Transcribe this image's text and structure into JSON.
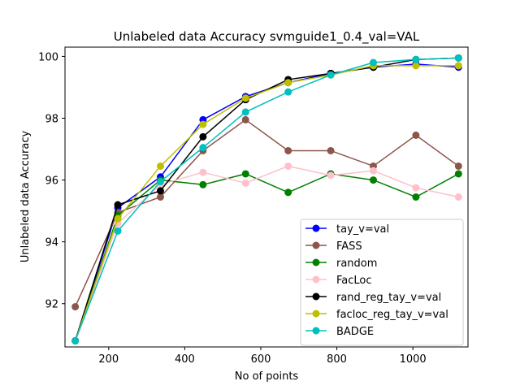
{
  "chart_data": {
    "type": "line",
    "title": "Unlabeled data Accuracy svmguide1_0.4_val=VAL",
    "xlabel": "No of points",
    "ylabel": "Unlabeled data Accuracy",
    "xlim": [
      85,
      1145
    ],
    "ylim": [
      90.6,
      100.3
    ],
    "xticks": [
      200,
      400,
      600,
      800,
      1000
    ],
    "yticks": [
      92,
      94,
      96,
      98,
      100
    ],
    "grid": false,
    "legend_position": "lower right",
    "x": [
      112,
      224,
      336,
      448,
      560,
      672,
      784,
      896,
      1008,
      1120
    ],
    "series": [
      {
        "name": "tay_v=val",
        "color": "#0000ff",
        "values": [
          90.8,
          95.1,
          96.1,
          97.95,
          98.7,
          99.15,
          99.45,
          99.65,
          99.75,
          99.65
        ]
      },
      {
        "name": "FASS",
        "color": "#8c564b",
        "values": [
          91.9,
          94.95,
          95.45,
          96.95,
          97.95,
          96.95,
          96.95,
          96.45,
          97.45,
          96.45
        ]
      },
      {
        "name": "random",
        "color": "#008000",
        "values": [
          90.8,
          94.85,
          96.0,
          95.85,
          96.2,
          95.6,
          96.2,
          96.0,
          95.45,
          96.2
        ]
      },
      {
        "name": "FacLoc",
        "color": "#ffc0cb",
        "values": [
          90.8,
          94.6,
          95.85,
          96.25,
          95.9,
          96.45,
          96.15,
          96.3,
          95.75,
          95.45
        ]
      },
      {
        "name": "rand_reg_tay_v=val",
        "color": "#000000",
        "values": [
          90.8,
          95.2,
          95.65,
          97.4,
          98.6,
          99.25,
          99.45,
          99.65,
          99.9,
          99.95
        ]
      },
      {
        "name": "facloc_reg_tay_v=val",
        "color": "#bfbf00",
        "values": [
          90.8,
          94.75,
          96.45,
          97.8,
          98.65,
          99.15,
          99.4,
          99.7,
          99.7,
          99.7
        ]
      },
      {
        "name": "BADGE",
        "color": "#00bfbf",
        "values": [
          90.8,
          94.35,
          95.95,
          97.05,
          98.2,
          98.85,
          99.4,
          99.8,
          99.9,
          99.95
        ]
      }
    ]
  }
}
